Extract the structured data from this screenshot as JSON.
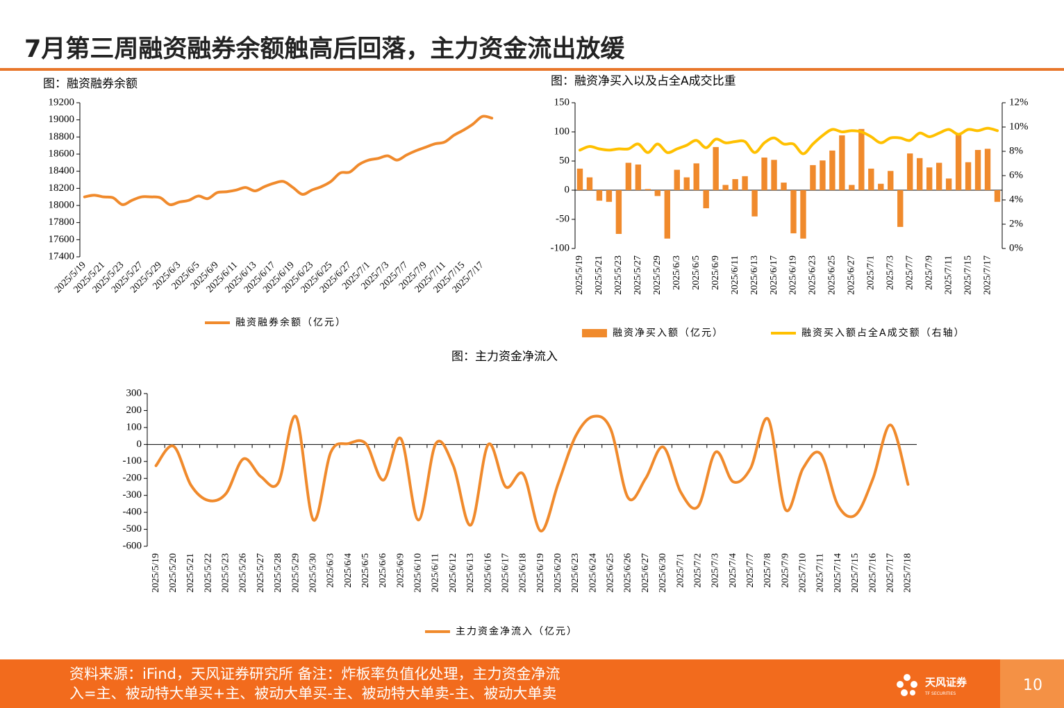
{
  "header": {
    "title": "7月第三周融资融券余额触高后回落，主力资金流出放缓"
  },
  "chart_data": [
    {
      "type": "line",
      "title": "图：融资融券余额",
      "categories": [
        "2025/5/19",
        null,
        "2025/5/21",
        null,
        "2025/5/23",
        null,
        "2025/5/27",
        null,
        "2025/5/29",
        null,
        "2025/6/3",
        null,
        "2025/6/5",
        null,
        "2025/6/9",
        null,
        "2025/6/11",
        null,
        "2025/6/13",
        null,
        "2025/6/17",
        null,
        "2025/6/19",
        null,
        "2025/6/23",
        null,
        "2025/6/25",
        null,
        "2025/6/27",
        null,
        "2025/7/1",
        null,
        "2025/7/3",
        null,
        "2025/7/7",
        null,
        "2025/7/9",
        null,
        "2025/7/11",
        null,
        "2025/7/15",
        null,
        "2025/7/17",
        null
      ],
      "series": [
        {
          "name": "融资融券余额（亿元）",
          "color": "#f08a2c",
          "values": [
            18100,
            18120,
            18100,
            18090,
            18010,
            18060,
            18100,
            18100,
            18090,
            18010,
            18040,
            18060,
            18110,
            18080,
            18150,
            18160,
            18180,
            18210,
            18170,
            18220,
            18260,
            18280,
            18210,
            18130,
            18180,
            18220,
            18280,
            18380,
            18390,
            18480,
            18530,
            18550,
            18580,
            18530,
            18590,
            18640,
            18680,
            18720,
            18740,
            18820,
            18880,
            18950,
            19040,
            19020
          ]
        }
      ],
      "ylim": [
        17400,
        19200
      ],
      "yticks": [
        17400,
        17600,
        17800,
        18000,
        18200,
        18400,
        18600,
        18800,
        19000,
        19200
      ]
    },
    {
      "type": "bar",
      "title": "图：融资净买入以及占全A成交比重",
      "categories": [
        "2025/5/19",
        null,
        "2025/5/21",
        null,
        "2025/5/23",
        null,
        "2025/5/27",
        null,
        "2025/5/29",
        null,
        "2025/6/3",
        null,
        "2025/6/5",
        null,
        "2025/6/9",
        null,
        "2025/6/11",
        null,
        "2025/6/13",
        null,
        "2025/6/17",
        null,
        "2025/6/19",
        null,
        "2025/6/23",
        null,
        "2025/6/25",
        null,
        "2025/6/27",
        null,
        "2025/7/1",
        null,
        "2025/7/3",
        null,
        "2025/7/7",
        null,
        "2025/7/9",
        null,
        "2025/7/11",
        null,
        "2025/7/15",
        null,
        "2025/7/17",
        null
      ],
      "series": [
        {
          "name": "融资净买入额（亿元）",
          "color": "#f08a2c",
          "values": [
            37,
            22,
            -18,
            -20,
            -75,
            47,
            44,
            2,
            -10,
            -83,
            35,
            22,
            46,
            -31,
            74,
            9,
            19,
            24,
            -45,
            56,
            52,
            13,
            -74,
            -83,
            43,
            51,
            68,
            94,
            9,
            105,
            37,
            11,
            33,
            -63,
            63,
            55,
            39,
            47,
            20,
            96,
            48,
            69,
            71,
            -20
          ]
        },
        {
          "name": "融资买入额占全A成交额（右轴）",
          "type": "line",
          "axis": "y2",
          "color": "#ffc000",
          "values": [
            8.1,
            8.4,
            8.2,
            8.1,
            8.2,
            8.2,
            8.6,
            7.9,
            8.6,
            7.9,
            8.2,
            8.5,
            8.9,
            8.3,
            9.0,
            8.7,
            8.8,
            8.8,
            7.9,
            8.7,
            9.1,
            8.6,
            8.6,
            7.8,
            8.6,
            9.3,
            9.8,
            9.6,
            9.7,
            9.6,
            9.2,
            8.7,
            9.1,
            9.1,
            8.9,
            9.5,
            9.2,
            9.5,
            9.8,
            9.4,
            9.8,
            9.7,
            9.9,
            9.7
          ]
        }
      ],
      "ylim": [
        -100,
        150
      ],
      "yticks": [
        -100,
        -50,
        0,
        50,
        100,
        150
      ],
      "y2lim": [
        0,
        12
      ],
      "y2ticks": [
        {
          "value": 0,
          "label": "0%"
        },
        {
          "value": 2,
          "label": "2%"
        },
        {
          "value": 4,
          "label": "4%"
        },
        {
          "value": 6,
          "label": "6%"
        },
        {
          "value": 8,
          "label": "8%"
        },
        {
          "value": 10,
          "label": "10%"
        },
        {
          "value": 12,
          "label": "12%"
        }
      ]
    },
    {
      "type": "line",
      "title": "图：主力资金净流入",
      "categories": [
        "2025/5/19",
        "2025/5/20",
        "2025/5/21",
        "2025/5/22",
        "2025/5/23",
        "2025/5/26",
        "2025/5/27",
        "2025/5/28",
        "2025/5/29",
        "2025/5/30",
        "2025/6/3",
        "2025/6/4",
        "2025/6/5",
        "2025/6/6",
        "2025/6/9",
        "2025/6/10",
        "2025/6/11",
        "2025/6/12",
        "2025/6/13",
        "2025/6/16",
        "2025/6/17",
        "2025/6/18",
        "2025/6/19",
        "2025/6/20",
        "2025/6/23",
        "2025/6/24",
        "2025/6/25",
        "2025/6/26",
        "2025/6/27",
        "2025/6/30",
        "2025/7/1",
        "2025/7/2",
        "2025/7/3",
        "2025/7/4",
        "2025/7/7",
        "2025/7/8",
        "2025/7/9",
        "2025/7/10",
        "2025/7/11",
        "2025/7/14",
        "2025/7/15",
        "2025/7/16",
        "2025/7/17",
        "2025/7/18"
      ],
      "series": [
        {
          "name": "主力资金净流入（亿元）",
          "color": "#f08a2c",
          "values": [
            -125,
            -10,
            -240,
            -330,
            -290,
            -85,
            -190,
            -225,
            165,
            -445,
            -45,
            5,
            5,
            -210,
            35,
            -445,
            5,
            -125,
            -475,
            0,
            -250,
            -175,
            -510,
            -230,
            50,
            165,
            90,
            -315,
            -200,
            -15,
            -280,
            -365,
            -45,
            -220,
            -140,
            150,
            -385,
            -140,
            -55,
            -360,
            -415,
            -200,
            115,
            -235
          ]
        }
      ],
      "ylim": [
        -600,
        300
      ],
      "yticks": [
        -600,
        -500,
        -400,
        -300,
        -200,
        -100,
        0,
        100,
        200,
        300
      ]
    }
  ],
  "footer": {
    "source": [
      "资料来源：iFind，天风证券研究所 备注：炸板率负值化处理，主力资金净流",
      "入=主、被动特大单买+主、被动大单买-主、被动特大单卖-主、被动大单卖"
    ],
    "logo": "天风证券",
    "logo_en": "TF SECURITIES",
    "page": "10"
  }
}
